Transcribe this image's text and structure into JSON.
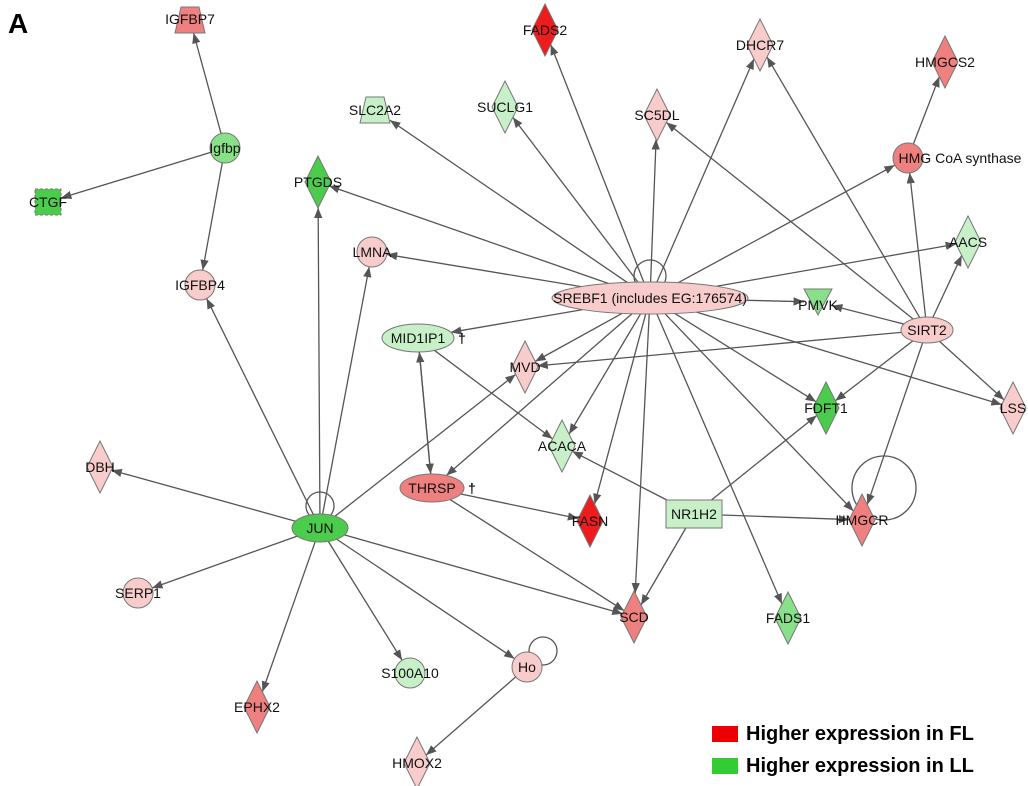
{
  "panel_label": "A",
  "colors": {
    "fl_strong": "#ee1c1c",
    "fl_medium": "#ef8080",
    "fl_light": "#f9cccc",
    "ll_strong": "#4ccc4c",
    "ll_medium": "#88e088",
    "ll_light": "#c8f0c8",
    "edge": "#555555",
    "legend_fl": "#ee0000",
    "legend_ll": "#33cc33"
  },
  "legend": [
    {
      "label": "Higher expression in FL",
      "color": "#ee0000"
    },
    {
      "label": "Higher expression in LL",
      "color": "#33cc33"
    }
  ],
  "nodes": [
    {
      "id": "IGFBP7",
      "label": "IGFBP7",
      "shape": "trapezoid",
      "color": "fl_medium"
    },
    {
      "id": "Igfbp",
      "label": "Igfbp",
      "shape": "circle",
      "color": "ll_medium"
    },
    {
      "id": "CTGF",
      "label": "CTGF",
      "shape": "square-dashed",
      "color": "ll_strong"
    },
    {
      "id": "IGFBP4",
      "label": "IGFBP4",
      "shape": "circle",
      "color": "fl_light"
    },
    {
      "id": "SLC2A2",
      "label": "SLC2A2",
      "shape": "trapezoid",
      "color": "ll_light"
    },
    {
      "id": "PTGDS",
      "label": "PTGDS",
      "shape": "diamond",
      "color": "ll_strong"
    },
    {
      "id": "SUCLG1",
      "label": "SUCLG1",
      "shape": "diamond",
      "color": "ll_light"
    },
    {
      "id": "FADS2",
      "label": "FADS2",
      "shape": "diamond",
      "color": "fl_strong"
    },
    {
      "id": "SC5DL",
      "label": "SC5DL",
      "shape": "diamond",
      "color": "fl_light"
    },
    {
      "id": "DHCR7",
      "label": "DHCR7",
      "shape": "diamond",
      "color": "fl_light"
    },
    {
      "id": "HMGCS2",
      "label": "HMGCS2",
      "shape": "diamond",
      "color": "fl_medium"
    },
    {
      "id": "HMGCoA",
      "label": "HMG CoA synthase",
      "shape": "circle",
      "color": "fl_medium"
    },
    {
      "id": "AACS",
      "label": "AACS",
      "shape": "diamond",
      "color": "ll_light"
    },
    {
      "id": "LMNA",
      "label": "LMNA",
      "shape": "circle",
      "color": "fl_light"
    },
    {
      "id": "SREBF1",
      "label": "SREBF1 (includes EG:176574)",
      "shape": "ellipse",
      "color": "fl_light"
    },
    {
      "id": "PMVK",
      "label": "PMVK",
      "shape": "triangle-down",
      "color": "ll_medium"
    },
    {
      "id": "SIRT2",
      "label": "SIRT2",
      "shape": "ellipse",
      "color": "fl_light"
    },
    {
      "id": "MID1IP1",
      "label": "MID1IP1",
      "shape": "ellipse",
      "color": "ll_light"
    },
    {
      "id": "MVD",
      "label": "MVD",
      "shape": "diamond",
      "color": "fl_light"
    },
    {
      "id": "FDFT1",
      "label": "FDFT1",
      "shape": "diamond",
      "color": "ll_strong"
    },
    {
      "id": "LSS",
      "label": "LSS",
      "shape": "diamond",
      "color": "fl_light"
    },
    {
      "id": "ACACA",
      "label": "ACACA",
      "shape": "diamond",
      "color": "ll_light"
    },
    {
      "id": "DBH",
      "label": "DBH",
      "shape": "diamond",
      "color": "fl_light"
    },
    {
      "id": "THRSP",
      "label": "THRSP",
      "shape": "ellipse",
      "color": "fl_medium"
    },
    {
      "id": "NR1H2",
      "label": "NR1H2",
      "shape": "rect",
      "color": "ll_light"
    },
    {
      "id": "HMGCR",
      "label": "HMGCR",
      "shape": "diamond",
      "color": "fl_medium"
    },
    {
      "id": "JUN",
      "label": "JUN",
      "shape": "ellipse",
      "color": "ll_strong"
    },
    {
      "id": "FASN",
      "label": "FASN",
      "shape": "diamond",
      "color": "fl_strong"
    },
    {
      "id": "SERP1",
      "label": "SERP1",
      "shape": "circle",
      "color": "fl_light"
    },
    {
      "id": "SCD",
      "label": "SCD",
      "shape": "diamond",
      "color": "fl_medium"
    },
    {
      "id": "FADS1",
      "label": "FADS1",
      "shape": "diamond",
      "color": "ll_medium"
    },
    {
      "id": "S100A10",
      "label": "S100A10",
      "shape": "circle",
      "color": "ll_light"
    },
    {
      "id": "Ho",
      "label": "Ho",
      "shape": "circle",
      "color": "fl_light"
    },
    {
      "id": "EPHX2",
      "label": "EPHX2",
      "shape": "diamond",
      "color": "fl_medium"
    },
    {
      "id": "HMOX2",
      "label": "HMOX2",
      "shape": "diamond",
      "color": "fl_light"
    }
  ],
  "daggers": [
    {
      "node": "MID1IP1",
      "text": "†"
    },
    {
      "node": "THRSP",
      "text": "†"
    }
  ],
  "edges": [
    [
      "Igfbp",
      "IGFBP7"
    ],
    [
      "Igfbp",
      "CTGF"
    ],
    [
      "Igfbp",
      "IGFBP4"
    ],
    [
      "SREBF1",
      "SLC2A2"
    ],
    [
      "SREBF1",
      "SUCLG1"
    ],
    [
      "SREBF1",
      "FADS2"
    ],
    [
      "SREBF1",
      "SC5DL"
    ],
    [
      "SREBF1",
      "DHCR7"
    ],
    [
      "SREBF1",
      "HMGCoA"
    ],
    [
      "SREBF1",
      "AACS"
    ],
    [
      "SREBF1",
      "PTGDS"
    ],
    [
      "SREBF1",
      "LMNA"
    ],
    [
      "SREBF1",
      "PMVK"
    ],
    [
      "SREBF1",
      "MID1IP1"
    ],
    [
      "SREBF1",
      "MVD"
    ],
    [
      "SREBF1",
      "FDFT1"
    ],
    [
      "SREBF1",
      "LSS"
    ],
    [
      "SREBF1",
      "ACACA"
    ],
    [
      "SREBF1",
      "THRSP"
    ],
    [
      "SREBF1",
      "FASN"
    ],
    [
      "SREBF1",
      "SCD"
    ],
    [
      "SREBF1",
      "FADS1"
    ],
    [
      "SREBF1",
      "HMGCR"
    ],
    [
      "SIRT2",
      "DHCR7"
    ],
    [
      "SIRT2",
      "SC5DL"
    ],
    [
      "SIRT2",
      "HMGCoA"
    ],
    [
      "SIRT2",
      "AACS"
    ],
    [
      "SIRT2",
      "PMVK"
    ],
    [
      "SIRT2",
      "MVD"
    ],
    [
      "SIRT2",
      "FDFT1"
    ],
    [
      "SIRT2",
      "LSS"
    ],
    [
      "SIRT2",
      "HMGCR"
    ],
    [
      "HMGCoA",
      "HMGCS2"
    ],
    [
      "NR1H2",
      "ACACA"
    ],
    [
      "NR1H2",
      "FDFT1"
    ],
    [
      "NR1H2",
      "HMGCR"
    ],
    [
      "NR1H2",
      "SCD"
    ],
    [
      "MID1IP1",
      "ACACA"
    ],
    [
      "MID1IP1",
      "THRSP"
    ],
    [
      "THRSP",
      "MID1IP1"
    ],
    [
      "THRSP",
      "FASN"
    ],
    [
      "THRSP",
      "SCD"
    ],
    [
      "JUN",
      "IGFBP4"
    ],
    [
      "JUN",
      "PTGDS"
    ],
    [
      "JUN",
      "LMNA"
    ],
    [
      "JUN",
      "MVD"
    ],
    [
      "JUN",
      "DBH"
    ],
    [
      "JUN",
      "SERP1"
    ],
    [
      "JUN",
      "EPHX2"
    ],
    [
      "JUN",
      "S100A10"
    ],
    [
      "JUN",
      "Ho"
    ],
    [
      "JUN",
      "SCD"
    ],
    [
      "Ho",
      "HMOX2"
    ]
  ],
  "self_loops": [
    "SREBF1",
    "JUN",
    "HMGCR",
    "Ho"
  ]
}
